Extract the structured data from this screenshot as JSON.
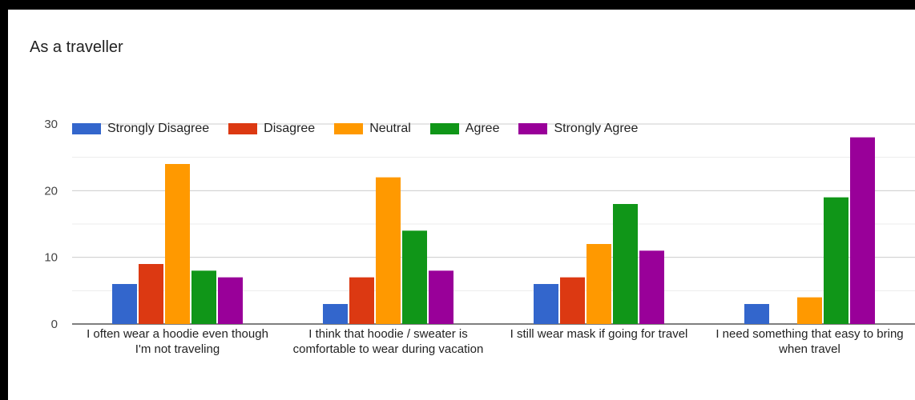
{
  "chart_data": {
    "type": "bar",
    "title": "As a traveller",
    "categories": [
      "I often wear a hoodie even though I'm not traveling",
      "I think that hoodie / sweater is comfortable to wear during vacation",
      "I still wear mask if going for travel",
      "I need something that easy to bring when travel"
    ],
    "series": [
      {
        "name": "Strongly Disagree",
        "color": "#3366cc",
        "values": [
          6,
          3,
          6,
          3
        ]
      },
      {
        "name": "Disagree",
        "color": "#dc3912",
        "values": [
          9,
          7,
          7,
          0
        ]
      },
      {
        "name": "Neutral",
        "color": "#ff9900",
        "values": [
          24,
          22,
          12,
          4
        ]
      },
      {
        "name": "Agree",
        "color": "#109618",
        "values": [
          8,
          14,
          18,
          19
        ]
      },
      {
        "name": "Strongly Agree",
        "color": "#990099",
        "values": [
          7,
          8,
          11,
          28
        ]
      }
    ],
    "ylim": [
      0,
      30
    ],
    "yticks": [
      0,
      10,
      20,
      30
    ],
    "grid": true,
    "legend": "top-left"
  }
}
